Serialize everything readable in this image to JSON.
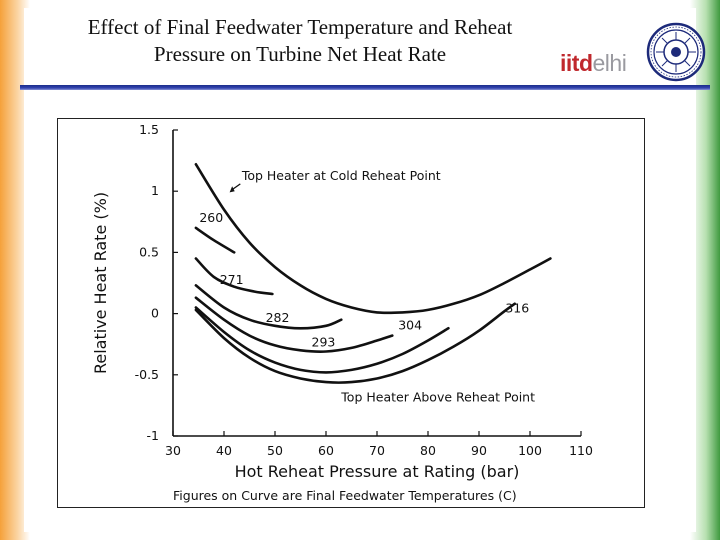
{
  "header": {
    "title_line1": "Effect of Final Feedwater Temperature and Reheat",
    "title_line2": "Pressure on Turbine Net Heat Rate",
    "logo_part1": "iitd",
    "logo_part2": "elhi"
  },
  "colors": {
    "left_stripe": "#f5a13a",
    "right_stripe": "#3f9a3f",
    "rule": "#1a2c8a",
    "logo_red": "#c0282d",
    "logo_gray": "#9a9aa0",
    "ink": "#111111"
  },
  "chart_data": {
    "type": "line",
    "xlabel": "Hot Reheat Pressure at Rating (bar)",
    "ylabel": "Relative Heat Rate (%)",
    "footnote": "Figures on Curve are Final Feedwater Temperatures (C)",
    "xlim": [
      30,
      110
    ],
    "ylim": [
      -1,
      1.5
    ],
    "x_ticks": [
      "30",
      "40",
      "50",
      "60",
      "70",
      "80",
      "90",
      "100",
      "110"
    ],
    "y_ticks": [
      "-1",
      "-0.5",
      "0",
      "0.5",
      "1",
      "1.5"
    ],
    "grid": false,
    "annotations": {
      "top": "Top Heater at Cold Reheat Point",
      "bottom": "Top Heater Above Reheat Point"
    },
    "series": [
      {
        "name": "Top Heater at Cold Reheat Point",
        "x": [
          34.5,
          40,
          45,
          50,
          55,
          60,
          65,
          70,
          75,
          80,
          85,
          90,
          95,
          100,
          104
        ],
        "y": [
          1.22,
          0.85,
          0.58,
          0.38,
          0.23,
          0.12,
          0.05,
          0.01,
          0.01,
          0.03,
          0.08,
          0.15,
          0.25,
          0.36,
          0.45
        ]
      },
      {
        "name": "260",
        "x": [
          34.5,
          38,
          42
        ],
        "y": [
          0.7,
          0.6,
          0.5
        ]
      },
      {
        "name": "271",
        "x": [
          34.5,
          38,
          42,
          46,
          49.5
        ],
        "y": [
          0.45,
          0.3,
          0.22,
          0.18,
          0.16
        ]
      },
      {
        "name": "282",
        "x": [
          34.5,
          40,
          45,
          50,
          55,
          60,
          63
        ],
        "y": [
          0.23,
          0.05,
          -0.05,
          -0.1,
          -0.12,
          -0.1,
          -0.05
        ]
      },
      {
        "name": "293",
        "x": [
          34.5,
          40,
          45,
          50,
          55,
          60,
          65,
          70,
          73
        ],
        "y": [
          0.13,
          -0.05,
          -0.18,
          -0.26,
          -0.3,
          -0.31,
          -0.28,
          -0.22,
          -0.18
        ]
      },
      {
        "name": "304",
        "x": [
          34.5,
          40,
          45,
          50,
          55,
          60,
          65,
          70,
          75,
          80,
          84
        ],
        "y": [
          0.05,
          -0.15,
          -0.3,
          -0.4,
          -0.46,
          -0.48,
          -0.46,
          -0.41,
          -0.33,
          -0.22,
          -0.12
        ]
      },
      {
        "name": "316",
        "x": [
          34.5,
          40,
          45,
          50,
          55,
          60,
          65,
          70,
          75,
          80,
          85,
          90,
          95,
          97
        ],
        "y": [
          0.03,
          -0.2,
          -0.36,
          -0.47,
          -0.53,
          -0.56,
          -0.56,
          -0.53,
          -0.47,
          -0.38,
          -0.27,
          -0.14,
          0.02,
          0.08
        ]
      }
    ]
  }
}
